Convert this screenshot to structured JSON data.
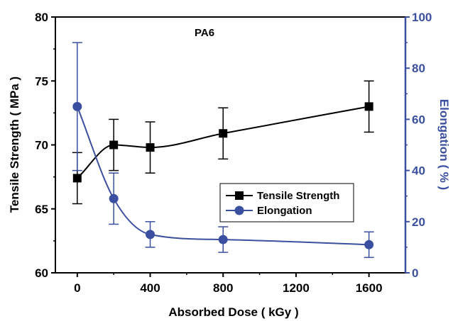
{
  "chart_data": {
    "type": "line",
    "title": "",
    "annotation": "PA6",
    "xlabel": "Absorbed Dose ( kGy )",
    "xlim": [
      -120,
      1800
    ],
    "x_ticks": [
      0,
      400,
      800,
      1200,
      1600
    ],
    "x_tick_labels": [
      "0",
      "400",
      "800",
      "1200",
      "1600"
    ],
    "y_left": {
      "label": "Tensile Strength ( MPa )",
      "lim": [
        60,
        80
      ],
      "ticks": [
        60,
        65,
        70,
        75,
        80
      ],
      "tick_labels": [
        "60",
        "65",
        "70",
        "75",
        "80"
      ],
      "color": "#000000"
    },
    "y_right": {
      "label": "Elongation ( % )",
      "lim": [
        0,
        100
      ],
      "ticks": [
        0,
        20,
        40,
        60,
        80,
        100
      ],
      "tick_labels": [
        "0",
        "20",
        "40",
        "60",
        "80",
        "100"
      ],
      "color": "#3a4fa0"
    },
    "series": [
      {
        "name": "Tensile Strength",
        "axis": "left",
        "marker": "square",
        "color": "#000000",
        "x": [
          0,
          200,
          400,
          800,
          1600
        ],
        "y": [
          67.4,
          70.0,
          69.8,
          70.9,
          73.0
        ],
        "err": [
          2.0,
          2.0,
          2.0,
          2.0,
          2.0
        ]
      },
      {
        "name": "Elongation",
        "axis": "right",
        "marker": "circle",
        "color": "#3a4fa0",
        "x": [
          0,
          200,
          400,
          800,
          1600
        ],
        "y": [
          65,
          29,
          15,
          13,
          11
        ],
        "err": [
          25,
          10,
          5,
          5,
          5
        ]
      }
    ],
    "legend": {
      "position": "center-right"
    },
    "grid": false
  }
}
